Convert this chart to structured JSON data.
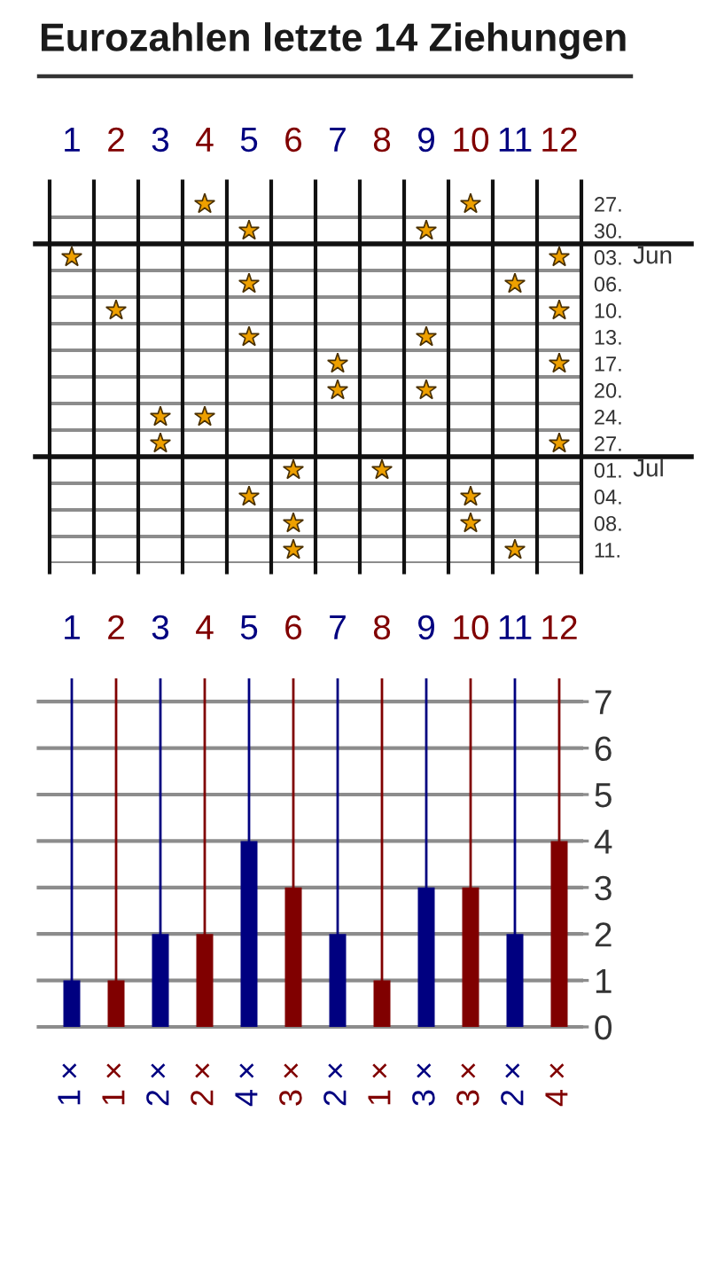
{
  "chart_data": [
    {
      "type": "scatter",
      "orientation": "horizontal",
      "title": "Eurozahlen letzte 14 Ziehungen",
      "categories": [
        "27.",
        "30.",
        "03.",
        "06.",
        "10.",
        "13.",
        "17.",
        "20.",
        "24.",
        "27.",
        "01.",
        "04.",
        "08.",
        "11."
      ],
      "y2_categories": [
        null,
        null,
        "Jun",
        null,
        null,
        null,
        null,
        null,
        null,
        null,
        "Jul",
        null,
        null,
        null
      ],
      "series": [
        {
          "color": "#eea000",
          "values": [
            4,
            5,
            1,
            5,
            2,
            5,
            7,
            7,
            3,
            3,
            6,
            5,
            6,
            6
          ]
        },
        {
          "color": "#eea000",
          "values": [
            10,
            9,
            12,
            11,
            12,
            9,
            12,
            9,
            4,
            12,
            8,
            10,
            10,
            11
          ]
        }
      ],
      "xlim": [
        0.5,
        12.5
      ],
      "xticks": [
        1,
        2,
        3,
        4,
        5,
        6,
        7,
        8,
        9,
        10,
        11,
        12
      ],
      "marker": "star",
      "grid": true
    },
    {
      "type": "bar",
      "categories": [
        "1",
        "2",
        "3",
        "4",
        "5",
        "6",
        "7",
        "8",
        "9",
        "10",
        "11",
        "12"
      ],
      "values": [
        1,
        1,
        2,
        2,
        4,
        3,
        2,
        1,
        3,
        3,
        2,
        4
      ],
      "colors": [
        "#000080",
        "#800000",
        "#000080",
        "#800000",
        "#000080",
        "#800000",
        "#000080",
        "#800000",
        "#000080",
        "#800000",
        "#000080",
        "#800000"
      ],
      "value_labels": [
        "1 ×",
        "1 ×",
        "2 ×",
        "2 ×",
        "4 ×",
        "3 ×",
        "2 ×",
        "1 ×",
        "3 ×",
        "3 ×",
        "2 ×",
        "4 ×"
      ],
      "ylim": [
        0,
        7.5
      ],
      "yticks": [
        0,
        1,
        2,
        3,
        4,
        5,
        6,
        7
      ],
      "grid": true
    }
  ]
}
